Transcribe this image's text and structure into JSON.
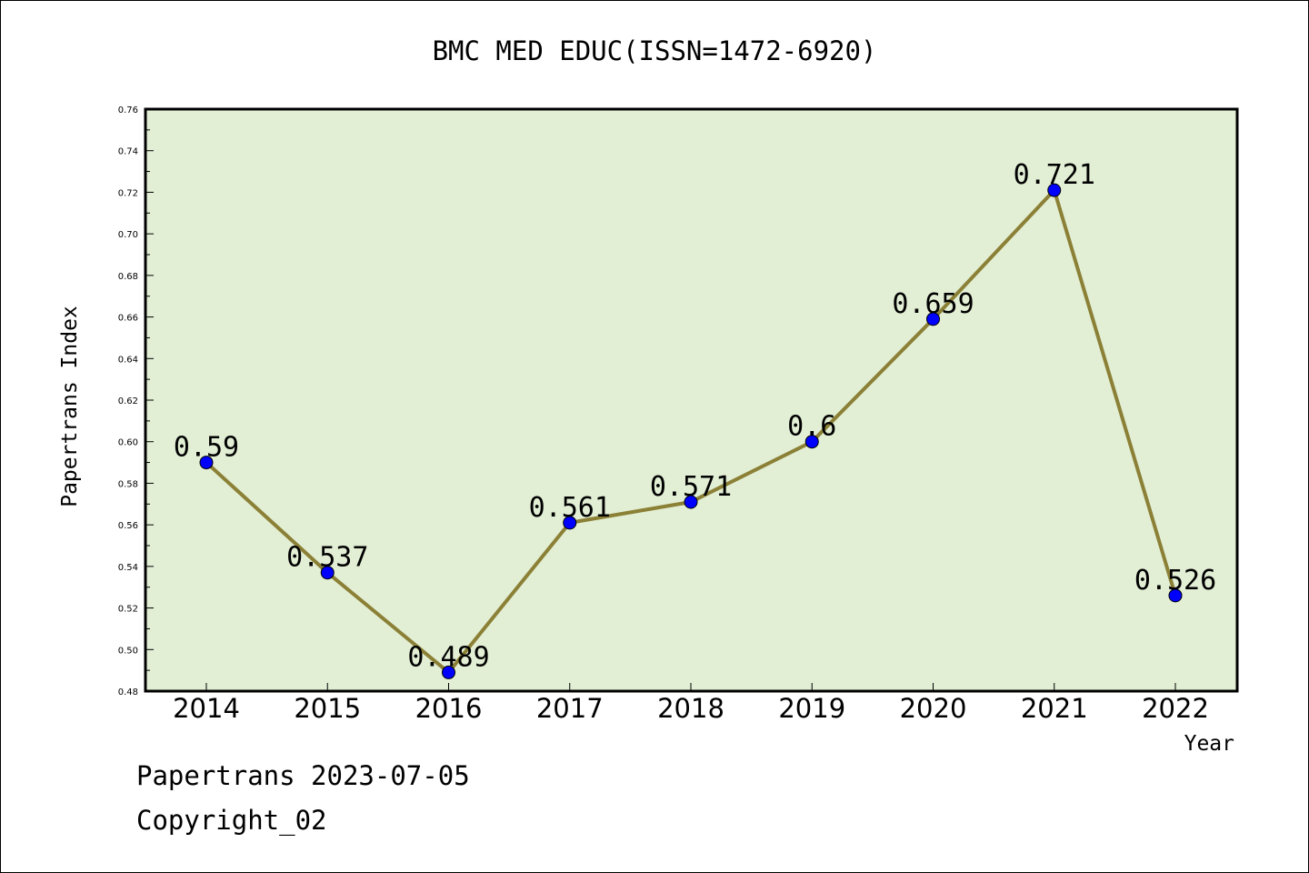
{
  "chart_data": {
    "type": "line",
    "title": "BMC MED EDUC(ISSN=1472-6920)",
    "xlabel": "Year",
    "ylabel": "Papertrans Index",
    "categories": [
      "2014",
      "2015",
      "2016",
      "2017",
      "2018",
      "2019",
      "2020",
      "2021",
      "2022"
    ],
    "values": [
      0.59,
      0.537,
      0.489,
      0.561,
      0.571,
      0.6,
      0.659,
      0.721,
      0.526
    ],
    "data_labels": [
      "0.59",
      "0.537",
      "0.489",
      "0.561",
      "0.571",
      "0.6",
      "0.659",
      "0.721",
      "0.526"
    ],
    "ylim": [
      0.48,
      0.76
    ],
    "yticks": [
      "0.48",
      "0.50",
      "0.52",
      "0.54",
      "0.56",
      "0.58",
      "0.60",
      "0.62",
      "0.64",
      "0.66",
      "0.68",
      "0.70",
      "0.72",
      "0.74",
      "0.76"
    ],
    "grid": false,
    "legend": "none",
    "colors": {
      "plot_background": "#e2efd5",
      "line": "#8b8036",
      "marker": "#0000ff"
    }
  },
  "footer": {
    "date_line": "Papertrans 2023-07-05",
    "copyright": "Copyright_02"
  }
}
